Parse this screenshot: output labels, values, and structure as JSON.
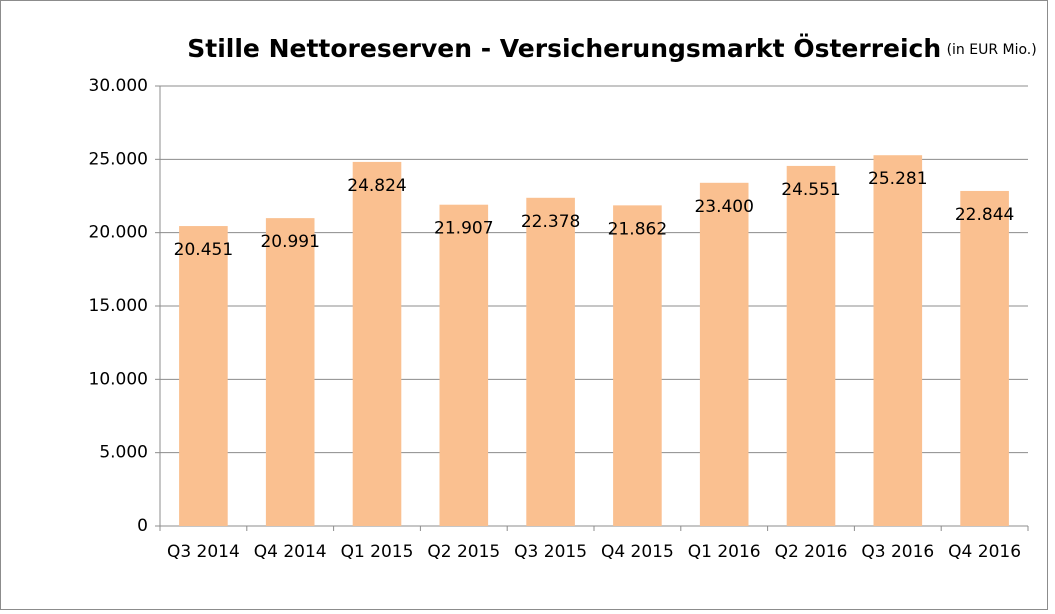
{
  "chart_data": {
    "type": "bar",
    "title": "Stille Nettoreserven - Versicherungsmarkt Österreich",
    "subtitle": "(in EUR Mio.)",
    "categories": [
      "Q3 2014",
      "Q4 2014",
      "Q1 2015",
      "Q2 2015",
      "Q3 2015",
      "Q4 2015",
      "Q1 2016",
      "Q2 2016",
      "Q3 2016",
      "Q4 2016"
    ],
    "values": [
      20451,
      20991,
      24824,
      21907,
      22378,
      21862,
      23400,
      24551,
      25281,
      22844
    ],
    "value_labels": [
      "20.451",
      "20.991",
      "24.824",
      "21.907",
      "22.378",
      "21.862",
      "23.400",
      "24.551",
      "25.281",
      "22.844"
    ],
    "color": "#fac090",
    "ylim": [
      0,
      30000
    ],
    "yticks": [
      0,
      {
        "value": 5000,
        "label": "5.000"
      },
      {
        "value": 10000,
        "label": "10.000"
      },
      {
        "value": 15000,
        "label": "15.000"
      },
      {
        "value": 20000,
        "label": "20.000"
      },
      {
        "value": 25000,
        "label": "25.000"
      },
      {
        "value": 30000,
        "label": "30.000"
      }
    ],
    "grid": true
  }
}
